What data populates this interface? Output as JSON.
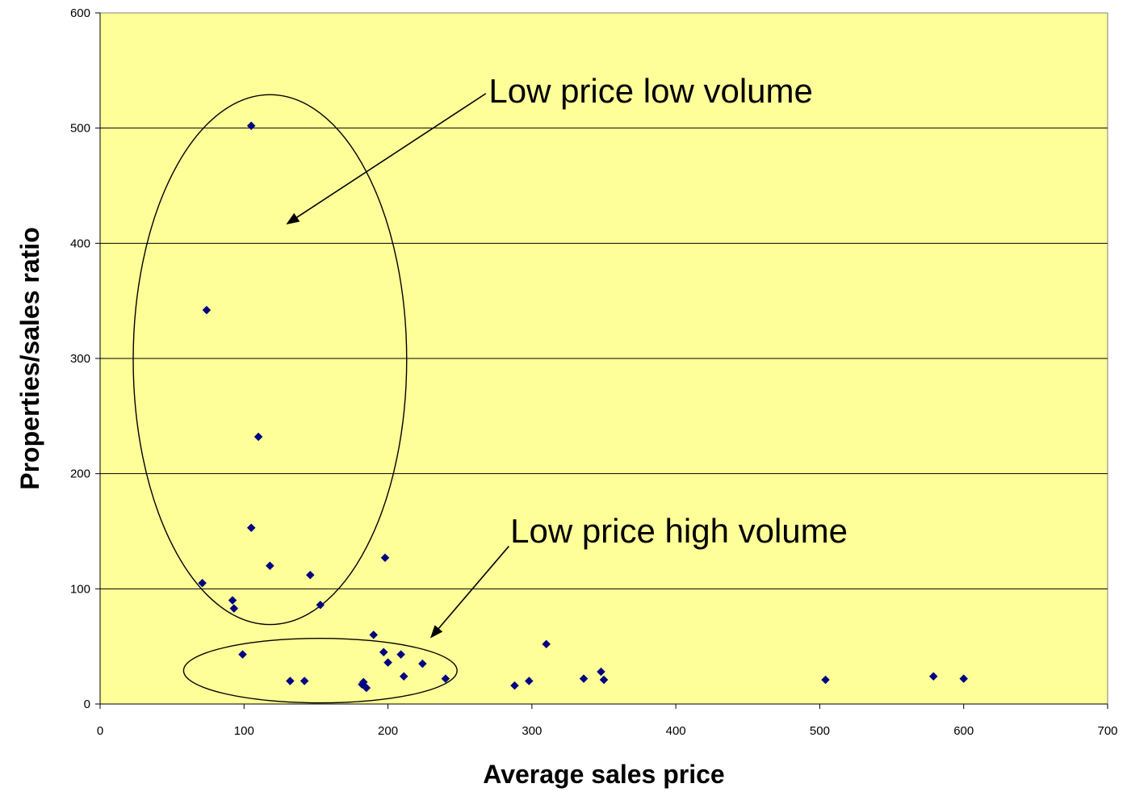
{
  "chart_data": {
    "type": "scatter",
    "xlabel": "Average sales price",
    "ylabel": "Properties/sales ratio",
    "xlim": [
      0,
      700
    ],
    "ylim": [
      0,
      600
    ],
    "x_ticks": [
      0,
      100,
      200,
      300,
      400,
      500,
      600,
      700
    ],
    "y_ticks": [
      0,
      100,
      200,
      300,
      400,
      500,
      600
    ],
    "grid": "horizontal",
    "plot_background": "#FFFF99",
    "marker_color": "#000080",
    "points": [
      {
        "x": 105,
        "y": 502
      },
      {
        "x": 74,
        "y": 342
      },
      {
        "x": 110,
        "y": 232
      },
      {
        "x": 105,
        "y": 153
      },
      {
        "x": 198,
        "y": 127
      },
      {
        "x": 118,
        "y": 120
      },
      {
        "x": 146,
        "y": 112
      },
      {
        "x": 71,
        "y": 105
      },
      {
        "x": 92,
        "y": 90
      },
      {
        "x": 153,
        "y": 86
      },
      {
        "x": 93,
        "y": 83
      },
      {
        "x": 190,
        "y": 60
      },
      {
        "x": 310,
        "y": 52
      },
      {
        "x": 197,
        "y": 45
      },
      {
        "x": 99,
        "y": 43
      },
      {
        "x": 209,
        "y": 43
      },
      {
        "x": 200,
        "y": 36
      },
      {
        "x": 224,
        "y": 35
      },
      {
        "x": 348,
        "y": 28
      },
      {
        "x": 211,
        "y": 24
      },
      {
        "x": 579,
        "y": 24
      },
      {
        "x": 240,
        "y": 22
      },
      {
        "x": 336,
        "y": 22
      },
      {
        "x": 600,
        "y": 22
      },
      {
        "x": 350,
        "y": 21
      },
      {
        "x": 504,
        "y": 21
      },
      {
        "x": 132,
        "y": 20
      },
      {
        "x": 142,
        "y": 20
      },
      {
        "x": 298,
        "y": 20
      },
      {
        "x": 183,
        "y": 19
      },
      {
        "x": 182,
        "y": 17
      },
      {
        "x": 288,
        "y": 16
      },
      {
        "x": 185,
        "y": 14
      }
    ],
    "annotations": [
      {
        "text": "Low price low volume",
        "label_x": 270,
        "label_y": 530,
        "arrow_from": [
          268,
          530
        ],
        "arrow_to": [
          130,
          417
        ],
        "ellipse": {
          "cx": 118,
          "cy": 299,
          "rx": 95,
          "ry": 230
        }
      },
      {
        "text": "Low price high volume",
        "label_x": 285,
        "label_y": 148,
        "arrow_from": [
          284,
          137
        ],
        "arrow_to": [
          230,
          58
        ],
        "ellipse": {
          "cx": 153,
          "cy": 29,
          "rx": 95,
          "ry": 28
        }
      }
    ]
  }
}
